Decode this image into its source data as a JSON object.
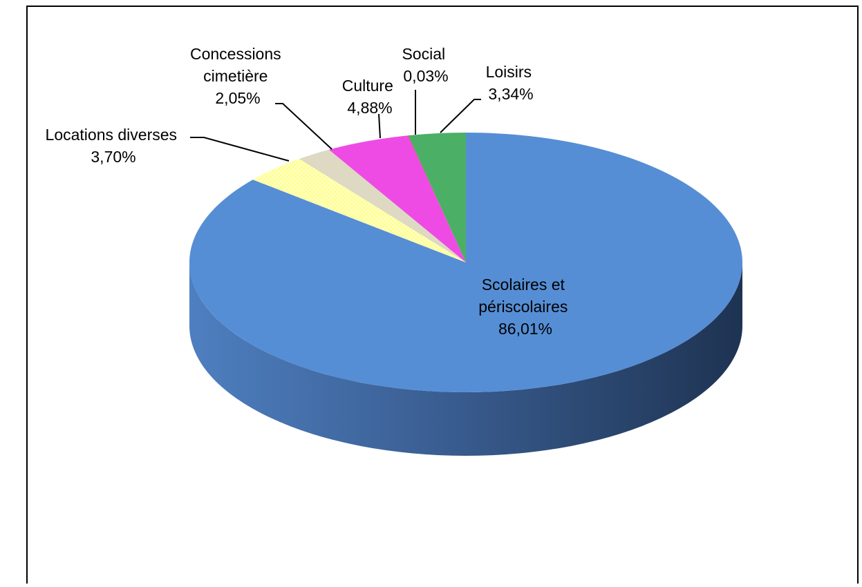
{
  "chart_data": {
    "type": "pie",
    "style": "3d",
    "title": "",
    "slices": [
      {
        "id": "scolaires",
        "label_lines": [
          "Scolaires et",
          "périscolaires"
        ],
        "value_label": "86,01%",
        "value": 86.01,
        "color": "#558ED5"
      },
      {
        "id": "locations",
        "label_lines": [
          "Locations diverses"
        ],
        "value_label": "3,70%",
        "value": 3.7,
        "color": "#FFFF99",
        "pattern": "dotted"
      },
      {
        "id": "concessions",
        "label_lines": [
          "Concessions",
          "cimetière"
        ],
        "value_label": "2,05%",
        "value": 2.05,
        "color": "#DDD9C3"
      },
      {
        "id": "culture",
        "label_lines": [
          "Culture"
        ],
        "value_label": "4,88%",
        "value": 4.88,
        "color": "#EE4BE4"
      },
      {
        "id": "social",
        "label_lines": [
          "Social"
        ],
        "value_label": "0,03%",
        "value": 0.03,
        "color": "#C0504D"
      },
      {
        "id": "loisirs",
        "label_lines": [
          "Loisirs"
        ],
        "value_label": "3,34%",
        "value": 3.34,
        "color": "#4BAF66"
      }
    ]
  }
}
